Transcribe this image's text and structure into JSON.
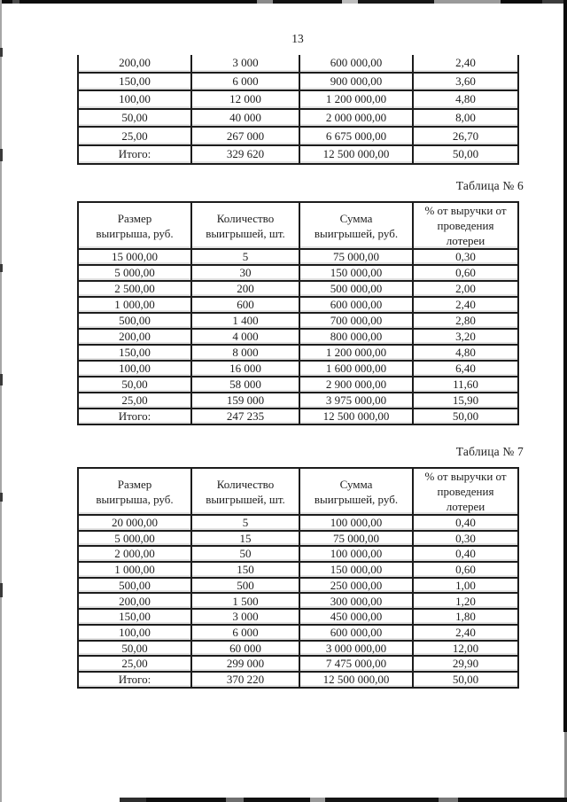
{
  "page": {
    "number": "13"
  },
  "colors": {
    "paper": "#ffffff",
    "ink": "#1d1d1d",
    "table_border": "#1c1c1c",
    "scan_edge": "#0b0b0b",
    "scan_smudge": "#9a9a9a"
  },
  "tables": {
    "continuation": {
      "rows": [
        [
          "200,00",
          "3 000",
          "600 000,00",
          "2,40"
        ],
        [
          "150,00",
          "6 000",
          "900 000,00",
          "3,60"
        ],
        [
          "100,00",
          "12 000",
          "1 200 000,00",
          "4,80"
        ],
        [
          "50,00",
          "40 000",
          "2 000 000,00",
          "8,00"
        ],
        [
          "25,00",
          "267 000",
          "6 675 000,00",
          "26,70"
        ],
        [
          "Итого:",
          "329 620",
          "12 500 000,00",
          "50,00"
        ]
      ]
    },
    "table6": {
      "caption": "Таблица № 6",
      "headers": [
        "Размер\nвыигрыша, руб.",
        "Количество\nвыигрышей, шт.",
        "Сумма\nвыигрышей, руб.",
        "% от выручки от\nпроведения\nлотереи"
      ],
      "rows": [
        [
          "15 000,00",
          "5",
          "75 000,00",
          "0,30"
        ],
        [
          "5 000,00",
          "30",
          "150 000,00",
          "0,60"
        ],
        [
          "2 500,00",
          "200",
          "500 000,00",
          "2,00"
        ],
        [
          "1 000,00",
          "600",
          "600 000,00",
          "2,40"
        ],
        [
          "500,00",
          "1 400",
          "700 000,00",
          "2,80"
        ],
        [
          "200,00",
          "4 000",
          "800 000,00",
          "3,20"
        ],
        [
          "150,00",
          "8 000",
          "1 200 000,00",
          "4,80"
        ],
        [
          "100,00",
          "16 000",
          "1 600 000,00",
          "6,40"
        ],
        [
          "50,00",
          "58 000",
          "2 900 000,00",
          "11,60"
        ],
        [
          "25,00",
          "159 000",
          "3 975 000,00",
          "15,90"
        ],
        [
          "Итого:",
          "247 235",
          "12 500 000,00",
          "50,00"
        ]
      ]
    },
    "table7": {
      "caption": "Таблица № 7",
      "headers": [
        "Размер\nвыигрыша, руб.",
        "Количество\nвыигрышей, шт.",
        "Сумма\nвыигрышей, руб.",
        "% от выручки от\nпроведения\nлотереи"
      ],
      "rows": [
        [
          "20 000,00",
          "5",
          "100 000,00",
          "0,40"
        ],
        [
          "5 000,00",
          "15",
          "75 000,00",
          "0,30"
        ],
        [
          "2 000,00",
          "50",
          "100 000,00",
          "0,40"
        ],
        [
          "1 000,00",
          "150",
          "150 000,00",
          "0,60"
        ],
        [
          "500,00",
          "500",
          "250 000,00",
          "1,00"
        ],
        [
          "200,00",
          "1 500",
          "300 000,00",
          "1,20"
        ],
        [
          "150,00",
          "3 000",
          "450 000,00",
          "1,80"
        ],
        [
          "100,00",
          "6 000",
          "600 000,00",
          "2,40"
        ],
        [
          "50,00",
          "60 000",
          "3 000 000,00",
          "12,00"
        ],
        [
          "25,00",
          "299 000",
          "7 475 000,00",
          "29,90"
        ],
        [
          "Итого:",
          "370 220",
          "12 500 000,00",
          "50,00"
        ]
      ]
    }
  }
}
